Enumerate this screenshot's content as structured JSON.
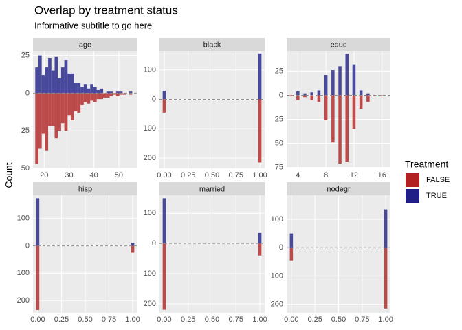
{
  "title": "Overlap by treatment status",
  "subtitle": "Informative subtitle to go here",
  "y_label": "Count",
  "legend": {
    "title": "Treatment",
    "series": [
      {
        "name": "FALSE",
        "color": "#b22222"
      },
      {
        "name": "TRUE",
        "color": "#1f1f87"
      }
    ]
  },
  "chart_data": [
    {
      "type": "histogram",
      "title": "age",
      "bins": [
        16.4,
        17.7,
        19.0,
        20.3,
        21.6,
        22.9,
        24.2,
        25.5,
        26.8,
        28.1,
        29.4,
        30.7,
        32.0,
        33.3,
        34.6,
        35.9,
        37.2,
        38.5,
        39.8,
        41.1,
        42.4,
        43.7,
        45.0,
        46.3,
        47.6,
        48.9,
        50.2,
        51.5,
        52.8,
        54.1,
        55.4
      ],
      "series": [
        {
          "values": [
            -47,
            -37,
            -27,
            -38,
            -22,
            -22,
            -30,
            -25,
            -20,
            -25,
            -15,
            -18,
            -12,
            -13,
            -8,
            -6,
            -7,
            -5,
            -6,
            -4,
            -4,
            -3,
            -3,
            -2,
            -1,
            -2,
            -1,
            -1,
            0,
            -1
          ]
        },
        {
          "values": [
            17,
            25,
            12,
            17,
            23,
            15,
            24,
            10,
            17,
            22,
            13,
            13,
            7,
            7,
            4,
            6,
            3,
            6,
            4,
            2,
            3,
            0,
            1,
            1,
            0,
            1,
            1,
            0,
            0,
            1
          ]
        }
      ],
      "xlim": [
        15.5,
        57.5
      ],
      "xticks": [
        20,
        30,
        40,
        50
      ],
      "ylim": [
        -50,
        28
      ],
      "yticks": [
        25,
        0,
        {
          "value": -25,
          "label": "25"
        },
        {
          "value": -50,
          "label": "50"
        }
      ]
    },
    {
      "type": "bar",
      "title": "black",
      "x": [
        0,
        1
      ],
      "series": [
        {
          "values": [
            -45,
            -215
          ]
        },
        {
          "values": [
            29,
            156
          ]
        }
      ],
      "xlim": [
        -0.05,
        1.05
      ],
      "xticks": [
        {
          "value": 0,
          "label": "0.00"
        },
        0.25,
        {
          "value": 0.5,
          "label": "0.50"
        },
        0.75,
        {
          "value": 1,
          "label": "1.00"
        }
      ],
      "ylim": [
        -235,
        165
      ],
      "yticks": [
        100,
        0,
        {
          "value": -100,
          "label": "100"
        },
        {
          "value": -200,
          "label": "200"
        }
      ]
    },
    {
      "type": "bar",
      "title": "educ",
      "x": [
        3,
        4,
        5,
        6,
        7,
        8,
        9,
        10,
        11,
        12,
        13,
        14,
        15,
        16
      ],
      "series": [
        {
          "values": [
            -1,
            -5,
            -2,
            -5,
            -7,
            -26,
            -49,
            -71,
            -69,
            -35,
            -14,
            -7,
            -1,
            -1
          ]
        },
        {
          "values": [
            0,
            4,
            2,
            3,
            5,
            21,
            26,
            30,
            43,
            32,
            5,
            2,
            0,
            0
          ]
        }
      ],
      "xlim": [
        2.4,
        17.2
      ],
      "xticks": [
        4,
        8,
        12,
        16
      ],
      "ylim": [
        -76,
        46
      ],
      "yticks": [
        25,
        0,
        {
          "value": -25,
          "label": "25"
        },
        {
          "value": -50,
          "label": "50"
        },
        {
          "value": -75,
          "label": "75"
        }
      ]
    },
    {
      "type": "bar",
      "title": "hisp",
      "x": [
        0,
        1
      ],
      "series": [
        {
          "values": [
            -235,
            -25
          ]
        },
        {
          "values": [
            174,
            11
          ]
        }
      ],
      "xlim": [
        -0.05,
        1.05
      ],
      "xticks": [
        {
          "value": 0,
          "label": "0.00"
        },
        0.25,
        {
          "value": 0.5,
          "label": "0.50"
        },
        0.75,
        {
          "value": 1,
          "label": "1.00"
        }
      ],
      "ylim": [
        -245,
        185
      ],
      "yticks": [
        100,
        0,
        {
          "value": -100,
          "label": "100"
        },
        {
          "value": -200,
          "label": "200"
        }
      ]
    },
    {
      "type": "bar",
      "title": "married",
      "x": [
        0,
        1
      ],
      "series": [
        {
          "values": [
            -220,
            -40
          ]
        },
        {
          "values": [
            150,
            35
          ]
        }
      ],
      "xlim": [
        -0.05,
        1.05
      ],
      "xticks": [
        {
          "value": 0,
          "label": "0.00"
        },
        0.25,
        {
          "value": 0.5,
          "label": "0.50"
        },
        0.75,
        {
          "value": 1,
          "label": "1.00"
        }
      ],
      "ylim": [
        -230,
        160
      ],
      "yticks": [
        100,
        0,
        {
          "value": -100,
          "label": "100"
        },
        {
          "value": -200,
          "label": "200"
        }
      ]
    },
    {
      "type": "bar",
      "title": "nodegr",
      "x": [
        0,
        1
      ],
      "series": [
        {
          "values": [
            -45,
            -215
          ]
        },
        {
          "values": [
            50,
            135
          ]
        }
      ],
      "xlim": [
        -0.05,
        1.05
      ],
      "xticks": [
        {
          "value": 0,
          "label": "0.00"
        },
        0.25,
        {
          "value": 0.5,
          "label": "0.50"
        },
        0.75,
        {
          "value": 1,
          "label": "1.00"
        }
      ],
      "ylim": [
        -230,
        185
      ],
      "yticks": [
        100,
        0,
        {
          "value": -100,
          "label": "100"
        },
        {
          "value": -200,
          "label": "200"
        }
      ]
    }
  ]
}
